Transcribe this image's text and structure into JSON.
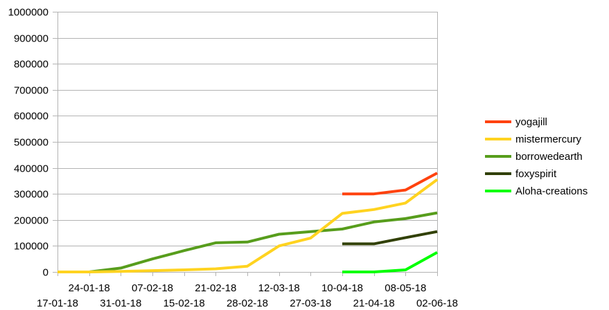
{
  "chart_data": {
    "type": "line",
    "title": "",
    "xlabel": "",
    "ylabel": "",
    "ylim": [
      0,
      1000000
    ],
    "y_ticks": [
      0,
      100000,
      200000,
      300000,
      400000,
      500000,
      600000,
      700000,
      800000,
      900000,
      1000000
    ],
    "y_tick_labels": [
      "0",
      "100000",
      "200000",
      "300000",
      "400000",
      "500000",
      "600000",
      "700000",
      "800000",
      "900000",
      "1000000"
    ],
    "categories": [
      "17-01-18",
      "24-01-18",
      "31-01-18",
      "07-02-18",
      "15-02-18",
      "21-02-18",
      "28-02-18",
      "12-03-18",
      "27-03-18",
      "10-04-18",
      "21-04-18",
      "08-05-18",
      "02-06-18"
    ],
    "grid": "horizontal",
    "legend_position": "right",
    "series": [
      {
        "name": "yogajill",
        "color": "#ff420e",
        "values": [
          null,
          null,
          null,
          null,
          null,
          null,
          null,
          null,
          null,
          300000,
          300000,
          315000,
          380000
        ]
      },
      {
        "name": "mistermercury",
        "color": "#ffd320",
        "values": [
          0,
          0,
          2000,
          5000,
          8000,
          12000,
          22000,
          100000,
          130000,
          225000,
          240000,
          265000,
          355000
        ]
      },
      {
        "name": "borrowedearth",
        "color": "#579d1c",
        "values": [
          null,
          0,
          15000,
          50000,
          82000,
          112000,
          115000,
          145000,
          155000,
          165000,
          192000,
          205000,
          227000
        ]
      },
      {
        "name": "foxyspirit",
        "color": "#314004",
        "values": [
          null,
          null,
          null,
          null,
          null,
          null,
          null,
          null,
          null,
          108000,
          108000,
          132000,
          155000
        ]
      },
      {
        "name": "Aloha-creations",
        "color": "#00ff00",
        "values": [
          null,
          null,
          null,
          null,
          null,
          null,
          null,
          null,
          null,
          0,
          0,
          8000,
          75000
        ]
      }
    ]
  }
}
